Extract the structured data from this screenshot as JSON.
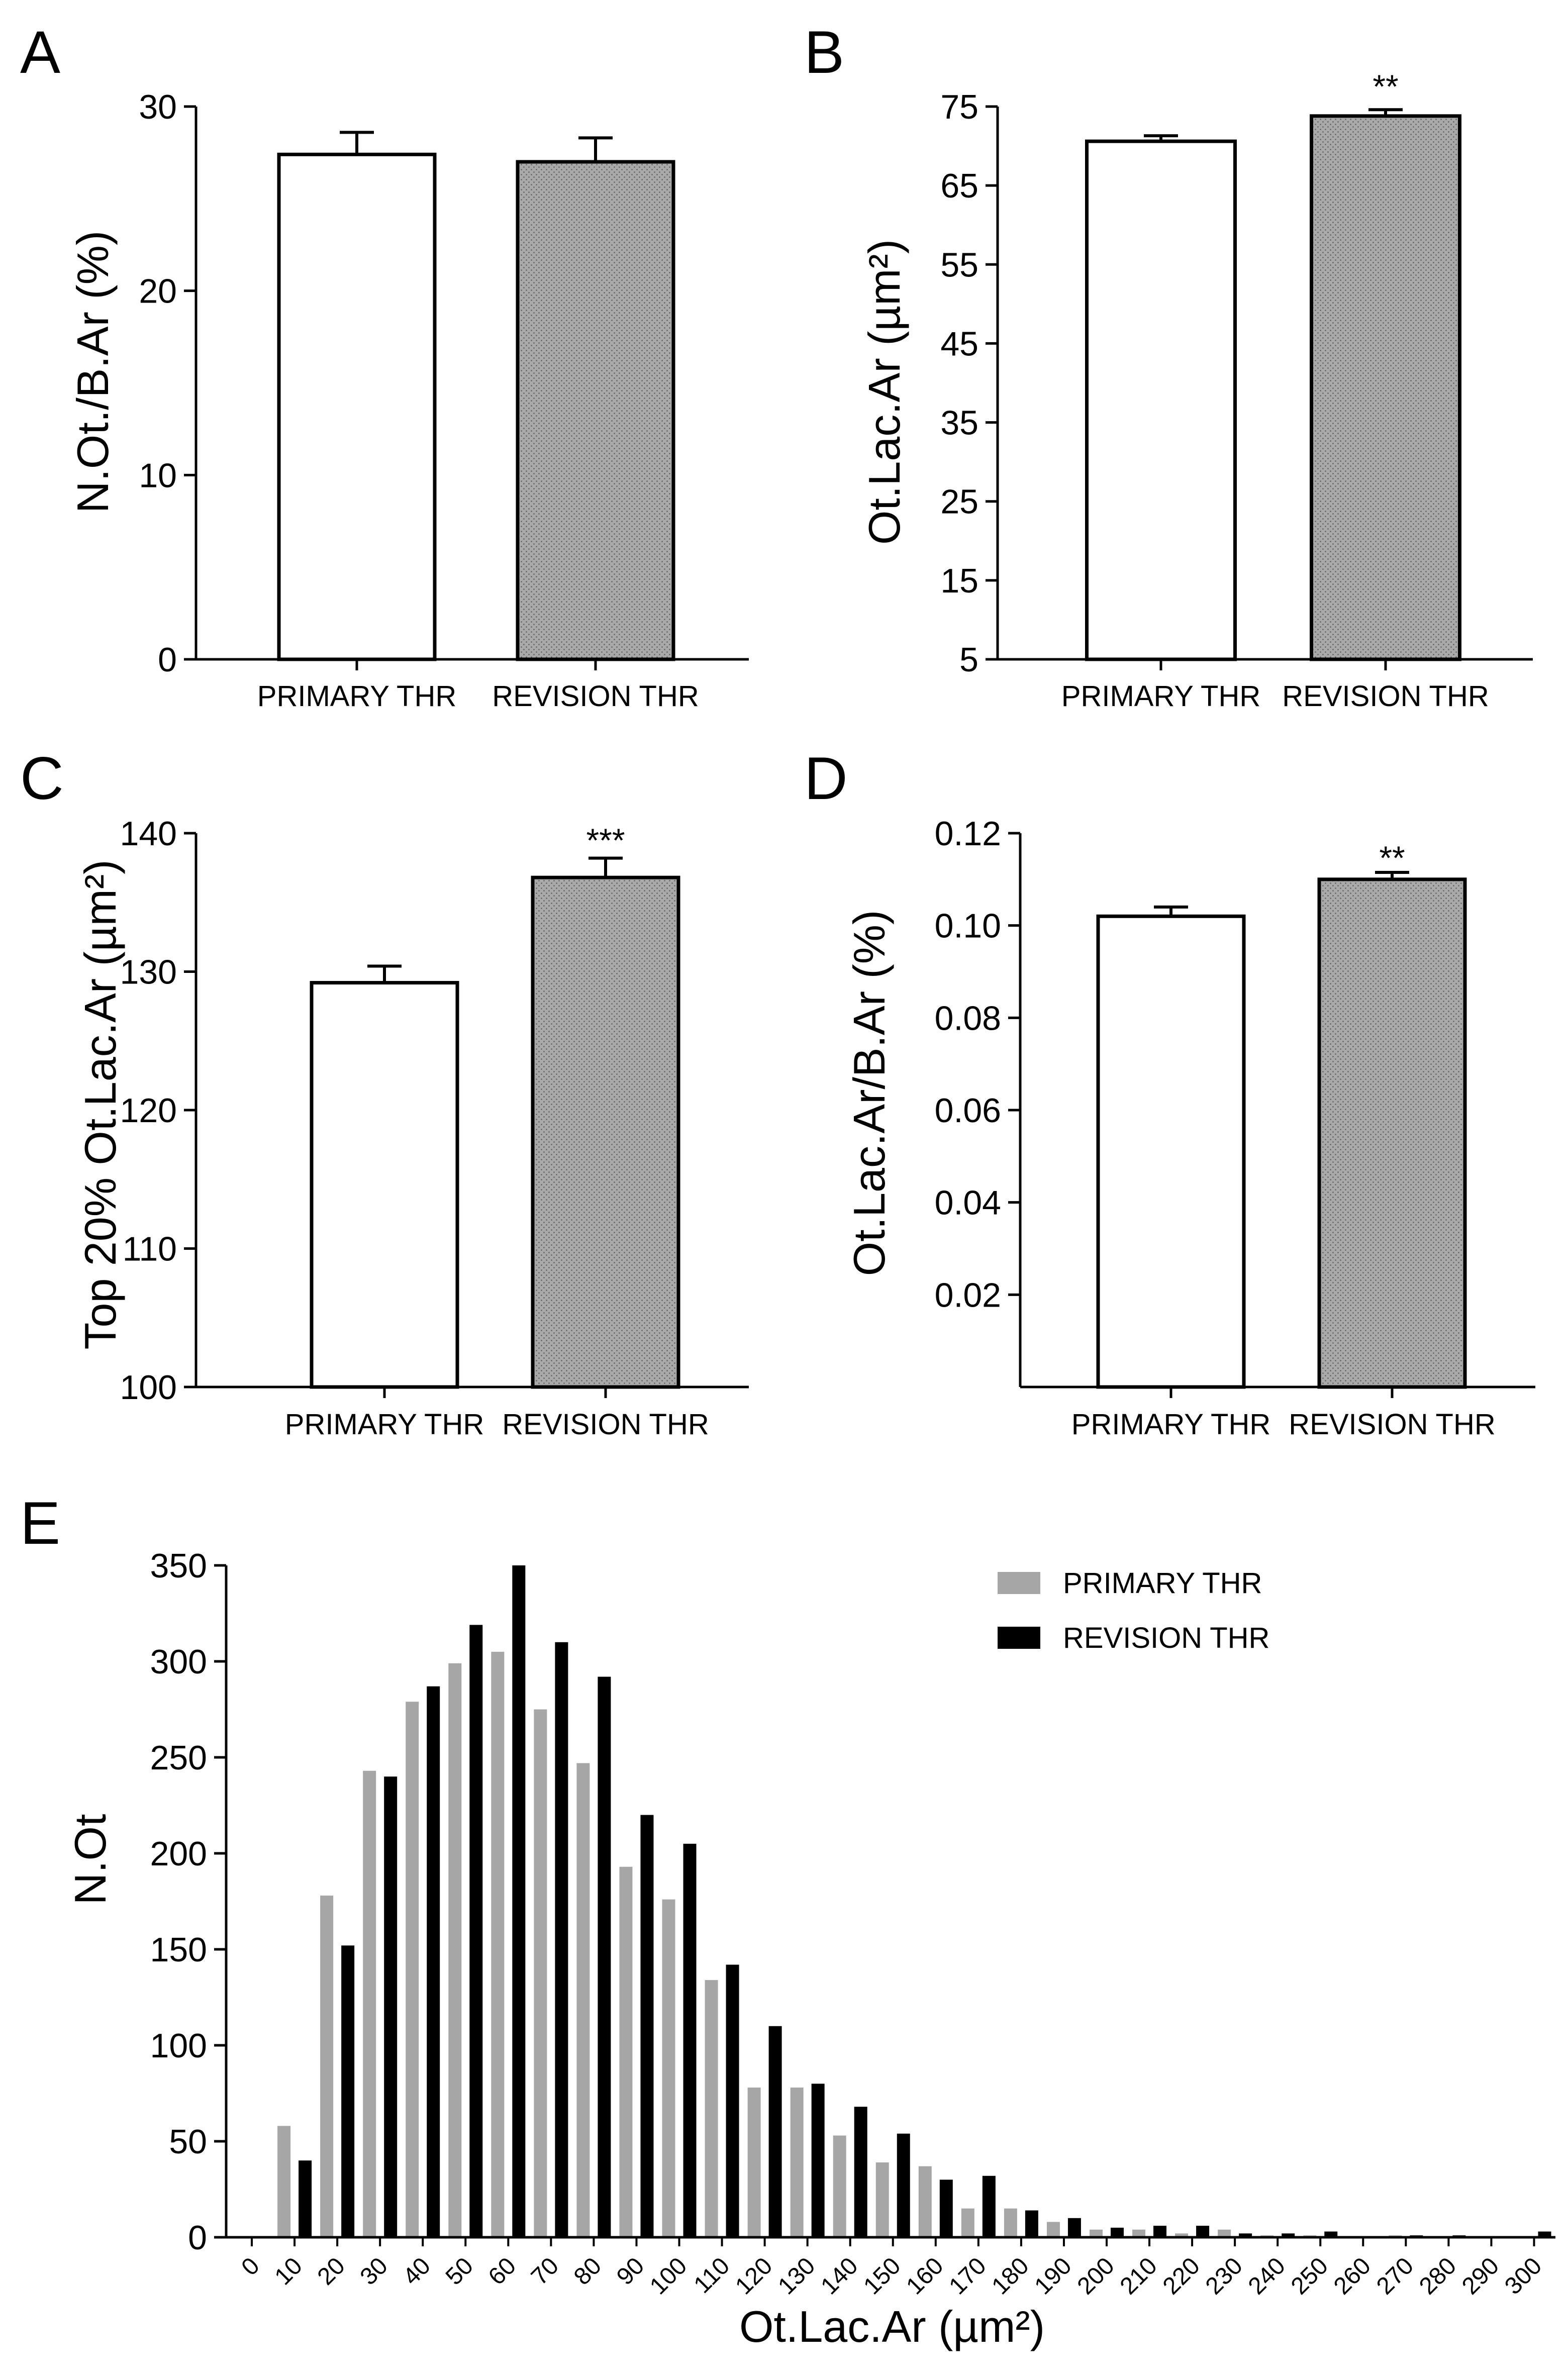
{
  "colors": {
    "primary_fill": "#ffffff",
    "revision_fill": "#a9a9a9",
    "hist_primary": "#a6a6a6",
    "hist_revision": "#000000",
    "axis": "#000000"
  },
  "chart_data": [
    {
      "id": "A",
      "panel_label": "A",
      "type": "bar",
      "ylabel": "N.Ot./B.Ar (%)",
      "ylim": [
        0,
        30
      ],
      "yticks": [
        0,
        10,
        20,
        30
      ],
      "tick_labels": [
        "0",
        "10",
        "20",
        "30"
      ],
      "categories": [
        "PRIMARY THR",
        "REVISION THR"
      ],
      "values": [
        27.4,
        27.0
      ],
      "errors": [
        1.2,
        1.3
      ],
      "significance": [
        "",
        ""
      ]
    },
    {
      "id": "B",
      "panel_label": "B",
      "type": "bar",
      "ylabel": "Ot.Lac.Ar (µm²)",
      "ylim": [
        5,
        75
      ],
      "yticks": [
        5,
        15,
        25,
        35,
        45,
        55,
        65,
        75
      ],
      "tick_labels": [
        "5",
        "15",
        "25",
        "35",
        "45",
        "55",
        "65",
        "75"
      ],
      "categories": [
        "PRIMARY THR",
        "REVISION THR"
      ],
      "values": [
        70.6,
        73.8
      ],
      "errors": [
        0.7,
        0.8
      ],
      "significance": [
        "",
        "**"
      ]
    },
    {
      "id": "C",
      "panel_label": "C",
      "type": "bar",
      "ylabel": "Top 20% Ot.Lac.Ar (µm²)",
      "ylim": [
        100,
        140
      ],
      "yticks": [
        100,
        110,
        120,
        130,
        140
      ],
      "tick_labels": [
        "100",
        "110",
        "120",
        "130",
        "140"
      ],
      "categories": [
        "PRIMARY THR",
        "REVISION THR"
      ],
      "values": [
        129.2,
        136.8
      ],
      "errors": [
        1.2,
        1.4
      ],
      "significance": [
        "",
        "***"
      ]
    },
    {
      "id": "D",
      "panel_label": "D",
      "type": "bar",
      "ylabel": "Ot.Lac.Ar/B.Ar (%)",
      "ylim": [
        0.0,
        0.12
      ],
      "yticks": [
        0.02,
        0.04,
        0.06,
        0.08,
        0.1,
        0.12
      ],
      "tick_labels": [
        "0.02",
        "0.04",
        "0.06",
        "0.08",
        "0.10",
        "0.12"
      ],
      "categories": [
        "PRIMARY THR",
        "REVISION THR"
      ],
      "values": [
        0.102,
        0.11
      ],
      "errors": [
        0.002,
        0.0015
      ],
      "significance": [
        "",
        "**"
      ]
    },
    {
      "id": "E",
      "panel_label": "E",
      "type": "bar",
      "xlabel": "Ot.Lac.Ar (µm²)",
      "ylabel": "N.Ot",
      "ylim": [
        0,
        350
      ],
      "yticks": [
        0,
        50,
        100,
        150,
        200,
        250,
        300,
        350
      ],
      "tick_labels": [
        "0",
        "50",
        "100",
        "150",
        "200",
        "250",
        "300",
        "350"
      ],
      "categories": [
        "0",
        "10",
        "20",
        "30",
        "40",
        "50",
        "60",
        "70",
        "80",
        "90",
        "100",
        "110",
        "120",
        "130",
        "140",
        "150",
        "160",
        "170",
        "180",
        "190",
        "200",
        "210",
        "220",
        "230",
        "240",
        "250",
        "260",
        "270",
        "280",
        "290",
        "300"
      ],
      "series": [
        {
          "name": "PRIMARY THR",
          "values": [
            0,
            58,
            178,
            243,
            279,
            299,
            305,
            275,
            247,
            193,
            176,
            134,
            78,
            78,
            53,
            39,
            37,
            15,
            15,
            8,
            4,
            4,
            2,
            4,
            1,
            1,
            0,
            1,
            0,
            0,
            0
          ]
        },
        {
          "name": "REVISION THR",
          "values": [
            0,
            40,
            152,
            240,
            287,
            319,
            350,
            310,
            292,
            220,
            205,
            142,
            110,
            80,
            68,
            54,
            30,
            32,
            14,
            10,
            5,
            6,
            6,
            2,
            2,
            3,
            0,
            1,
            1,
            0,
            3
          ]
        }
      ],
      "legend": [
        "PRIMARY THR",
        "REVISION THR"
      ],
      "legend_position": "top-right"
    }
  ]
}
